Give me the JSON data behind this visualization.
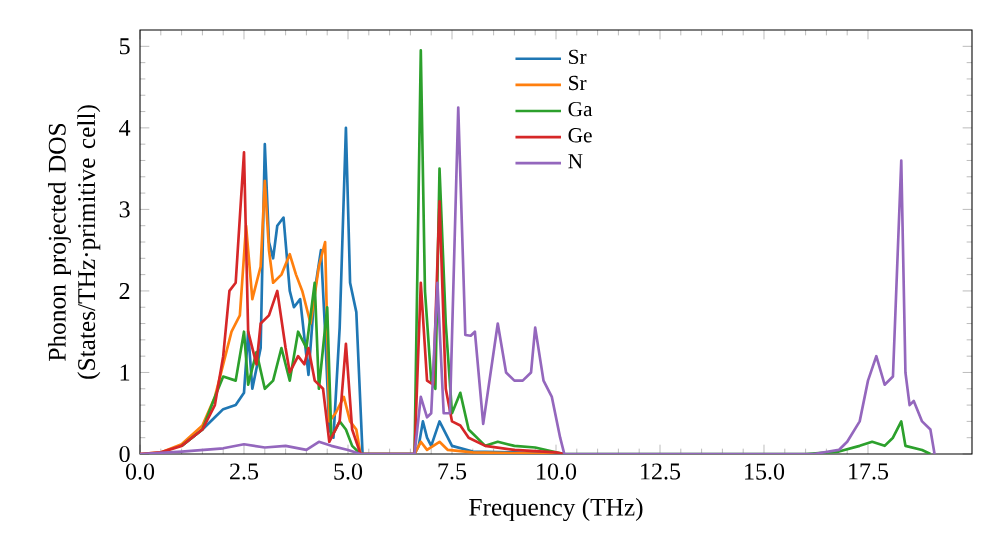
{
  "chart_data": {
    "type": "line",
    "xlabel": "Frequency (THz)",
    "ylabel": "Phonon projected DOS (States/THz·primitive cell)",
    "xlim": [
      0,
      20
    ],
    "ylim": [
      0,
      5.2
    ],
    "xticks": [
      {
        "value": 0,
        "label": "0.0"
      },
      {
        "value": 2.5,
        "label": "2.5"
      },
      {
        "value": 5,
        "label": "5.0"
      },
      {
        "value": 7.5,
        "label": "7.5"
      },
      {
        "value": 10,
        "label": "10.0"
      },
      {
        "value": 12.5,
        "label": "12.5"
      },
      {
        "value": 15,
        "label": "15.0"
      },
      {
        "value": 17.5,
        "label": "17.5"
      }
    ],
    "yticks": [
      0,
      1,
      2,
      3,
      4,
      5
    ],
    "grid": false,
    "legend": "top",
    "marker": "none",
    "line_style": "solid",
    "series": [
      {
        "name": "Sr",
        "color": "#1f77b4",
        "x": [
          1.0,
          1.5,
          1.8,
          2.0,
          2.3,
          2.5,
          2.6,
          2.7,
          2.9,
          3.0,
          3.1,
          3.2,
          3.3,
          3.45,
          3.6,
          3.7,
          3.85,
          4.0,
          4.05,
          4.2,
          4.35,
          4.45,
          4.55,
          4.65,
          4.8,
          4.95,
          5.05,
          5.2,
          5.35,
          6.6,
          6.7,
          6.8,
          6.9,
          7.0,
          7.2,
          7.3,
          7.5,
          8.0,
          9.0,
          10.0
        ],
        "values": [
          0.1,
          0.3,
          0.45,
          0.55,
          0.6,
          0.75,
          1.5,
          0.8,
          1.3,
          3.8,
          2.6,
          2.4,
          2.8,
          2.9,
          2.0,
          1.8,
          1.9,
          1.2,
          0.97,
          2.0,
          2.5,
          1.5,
          0.3,
          0.2,
          1.55,
          4.0,
          2.1,
          1.74,
          0,
          0,
          0.1,
          0.4,
          0.2,
          0.1,
          0.4,
          0.3,
          0.1,
          0.03,
          0.02,
          0
        ]
      },
      {
        "name": "Sr",
        "color": "#ff7f0e",
        "x": [
          0,
          0.5,
          1.0,
          1.5,
          1.8,
          2.0,
          2.2,
          2.4,
          2.55,
          2.7,
          2.9,
          3.0,
          3.1,
          3.2,
          3.4,
          3.6,
          3.75,
          3.9,
          4.1,
          4.3,
          4.45,
          4.55,
          4.7,
          4.9,
          5.05,
          5.2,
          5.3,
          6.6,
          6.75,
          6.9,
          7.2,
          7.4,
          8.0,
          10.0
        ],
        "values": [
          0,
          0.02,
          0.12,
          0.35,
          0.7,
          1.1,
          1.5,
          1.7,
          2.8,
          1.9,
          2.3,
          3.35,
          2.5,
          2.1,
          2.2,
          2.45,
          2.2,
          2.0,
          1.6,
          2.3,
          2.6,
          0.4,
          0.5,
          0.7,
          0.4,
          0.3,
          0,
          0,
          0.15,
          0.05,
          0.15,
          0.05,
          0.02,
          0
        ]
      },
      {
        "name": "Ga",
        "color": "#2ca02c",
        "x": [
          1.0,
          1.5,
          1.8,
          2.0,
          2.3,
          2.5,
          2.6,
          2.8,
          3.0,
          3.2,
          3.4,
          3.6,
          3.8,
          4.0,
          4.2,
          4.3,
          4.5,
          4.6,
          4.8,
          4.95,
          5.1,
          5.3,
          6.6,
          6.75,
          6.85,
          7.0,
          7.1,
          7.2,
          7.35,
          7.5,
          7.7,
          7.9,
          8.3,
          8.6,
          9.0,
          9.5,
          10.0,
          10.2,
          16.0,
          16.8,
          17.3,
          17.6,
          17.9,
          18.1,
          18.3,
          18.4,
          18.8,
          19.0
        ],
        "values": [
          0.1,
          0.3,
          0.7,
          0.95,
          0.9,
          1.5,
          0.85,
          1.25,
          0.8,
          0.9,
          1.3,
          0.9,
          1.5,
          1.3,
          2.1,
          0.8,
          1.8,
          0.2,
          0.4,
          0.3,
          0.1,
          0,
          0,
          4.95,
          2.0,
          0.9,
          0.8,
          3.5,
          1.6,
          0.5,
          0.75,
          0.3,
          0.1,
          0.15,
          0.1,
          0.08,
          0.02,
          0,
          0,
          0.03,
          0.1,
          0.15,
          0.1,
          0.2,
          0.4,
          0.1,
          0.05,
          0
        ]
      },
      {
        "name": "Ge",
        "color": "#d62728",
        "x": [
          0,
          0.5,
          1.0,
          1.5,
          1.8,
          2.0,
          2.15,
          2.3,
          2.5,
          2.6,
          2.8,
          2.9,
          3.1,
          3.3,
          3.5,
          3.6,
          3.8,
          3.95,
          4.05,
          4.2,
          4.4,
          4.55,
          4.8,
          4.95,
          5.1,
          5.3,
          6.6,
          6.75,
          6.9,
          7.05,
          7.2,
          7.35,
          7.5,
          7.7,
          7.9,
          8.3,
          9.0,
          10.0,
          10.2
        ],
        "values": [
          0,
          0.02,
          0.1,
          0.3,
          0.6,
          1.2,
          2.0,
          2.1,
          3.7,
          1.5,
          1.1,
          1.6,
          1.7,
          2.0,
          1.3,
          1.0,
          1.2,
          1.1,
          1.3,
          0.9,
          0.8,
          0.15,
          0.4,
          1.35,
          0.3,
          0,
          0,
          2.1,
          0.9,
          0.85,
          3.1,
          0.8,
          0.4,
          0.35,
          0.2,
          0.1,
          0.05,
          0.02,
          0
        ]
      },
      {
        "name": "N",
        "color": "#9467bd",
        "x": [
          0,
          1.0,
          2.0,
          2.5,
          3.0,
          3.5,
          4.0,
          4.3,
          4.6,
          5.0,
          5.3,
          6.6,
          6.75,
          6.9,
          7.0,
          7.15,
          7.3,
          7.45,
          7.65,
          7.82,
          7.95,
          8.05,
          8.25,
          8.6,
          8.8,
          9.0,
          9.2,
          9.4,
          9.5,
          9.7,
          9.9,
          10.1,
          10.2,
          16.2,
          16.8,
          17.0,
          17.3,
          17.5,
          17.7,
          17.9,
          18.1,
          18.3,
          18.4,
          18.5,
          18.6,
          18.8,
          19.0,
          19.1
        ],
        "values": [
          0,
          0.03,
          0.07,
          0.12,
          0.08,
          0.1,
          0.05,
          0.15,
          0.1,
          0.05,
          0,
          0,
          0.7,
          0.45,
          0.5,
          2.1,
          0.5,
          0.5,
          4.25,
          1.46,
          1.45,
          1.5,
          0.37,
          1.6,
          1.0,
          0.9,
          0.9,
          1.0,
          1.55,
          0.9,
          0.7,
          0.2,
          0,
          0,
          0.05,
          0.15,
          0.4,
          0.9,
          1.2,
          0.85,
          0.95,
          3.6,
          1.0,
          0.6,
          0.65,
          0.4,
          0.3,
          0
        ]
      }
    ]
  }
}
